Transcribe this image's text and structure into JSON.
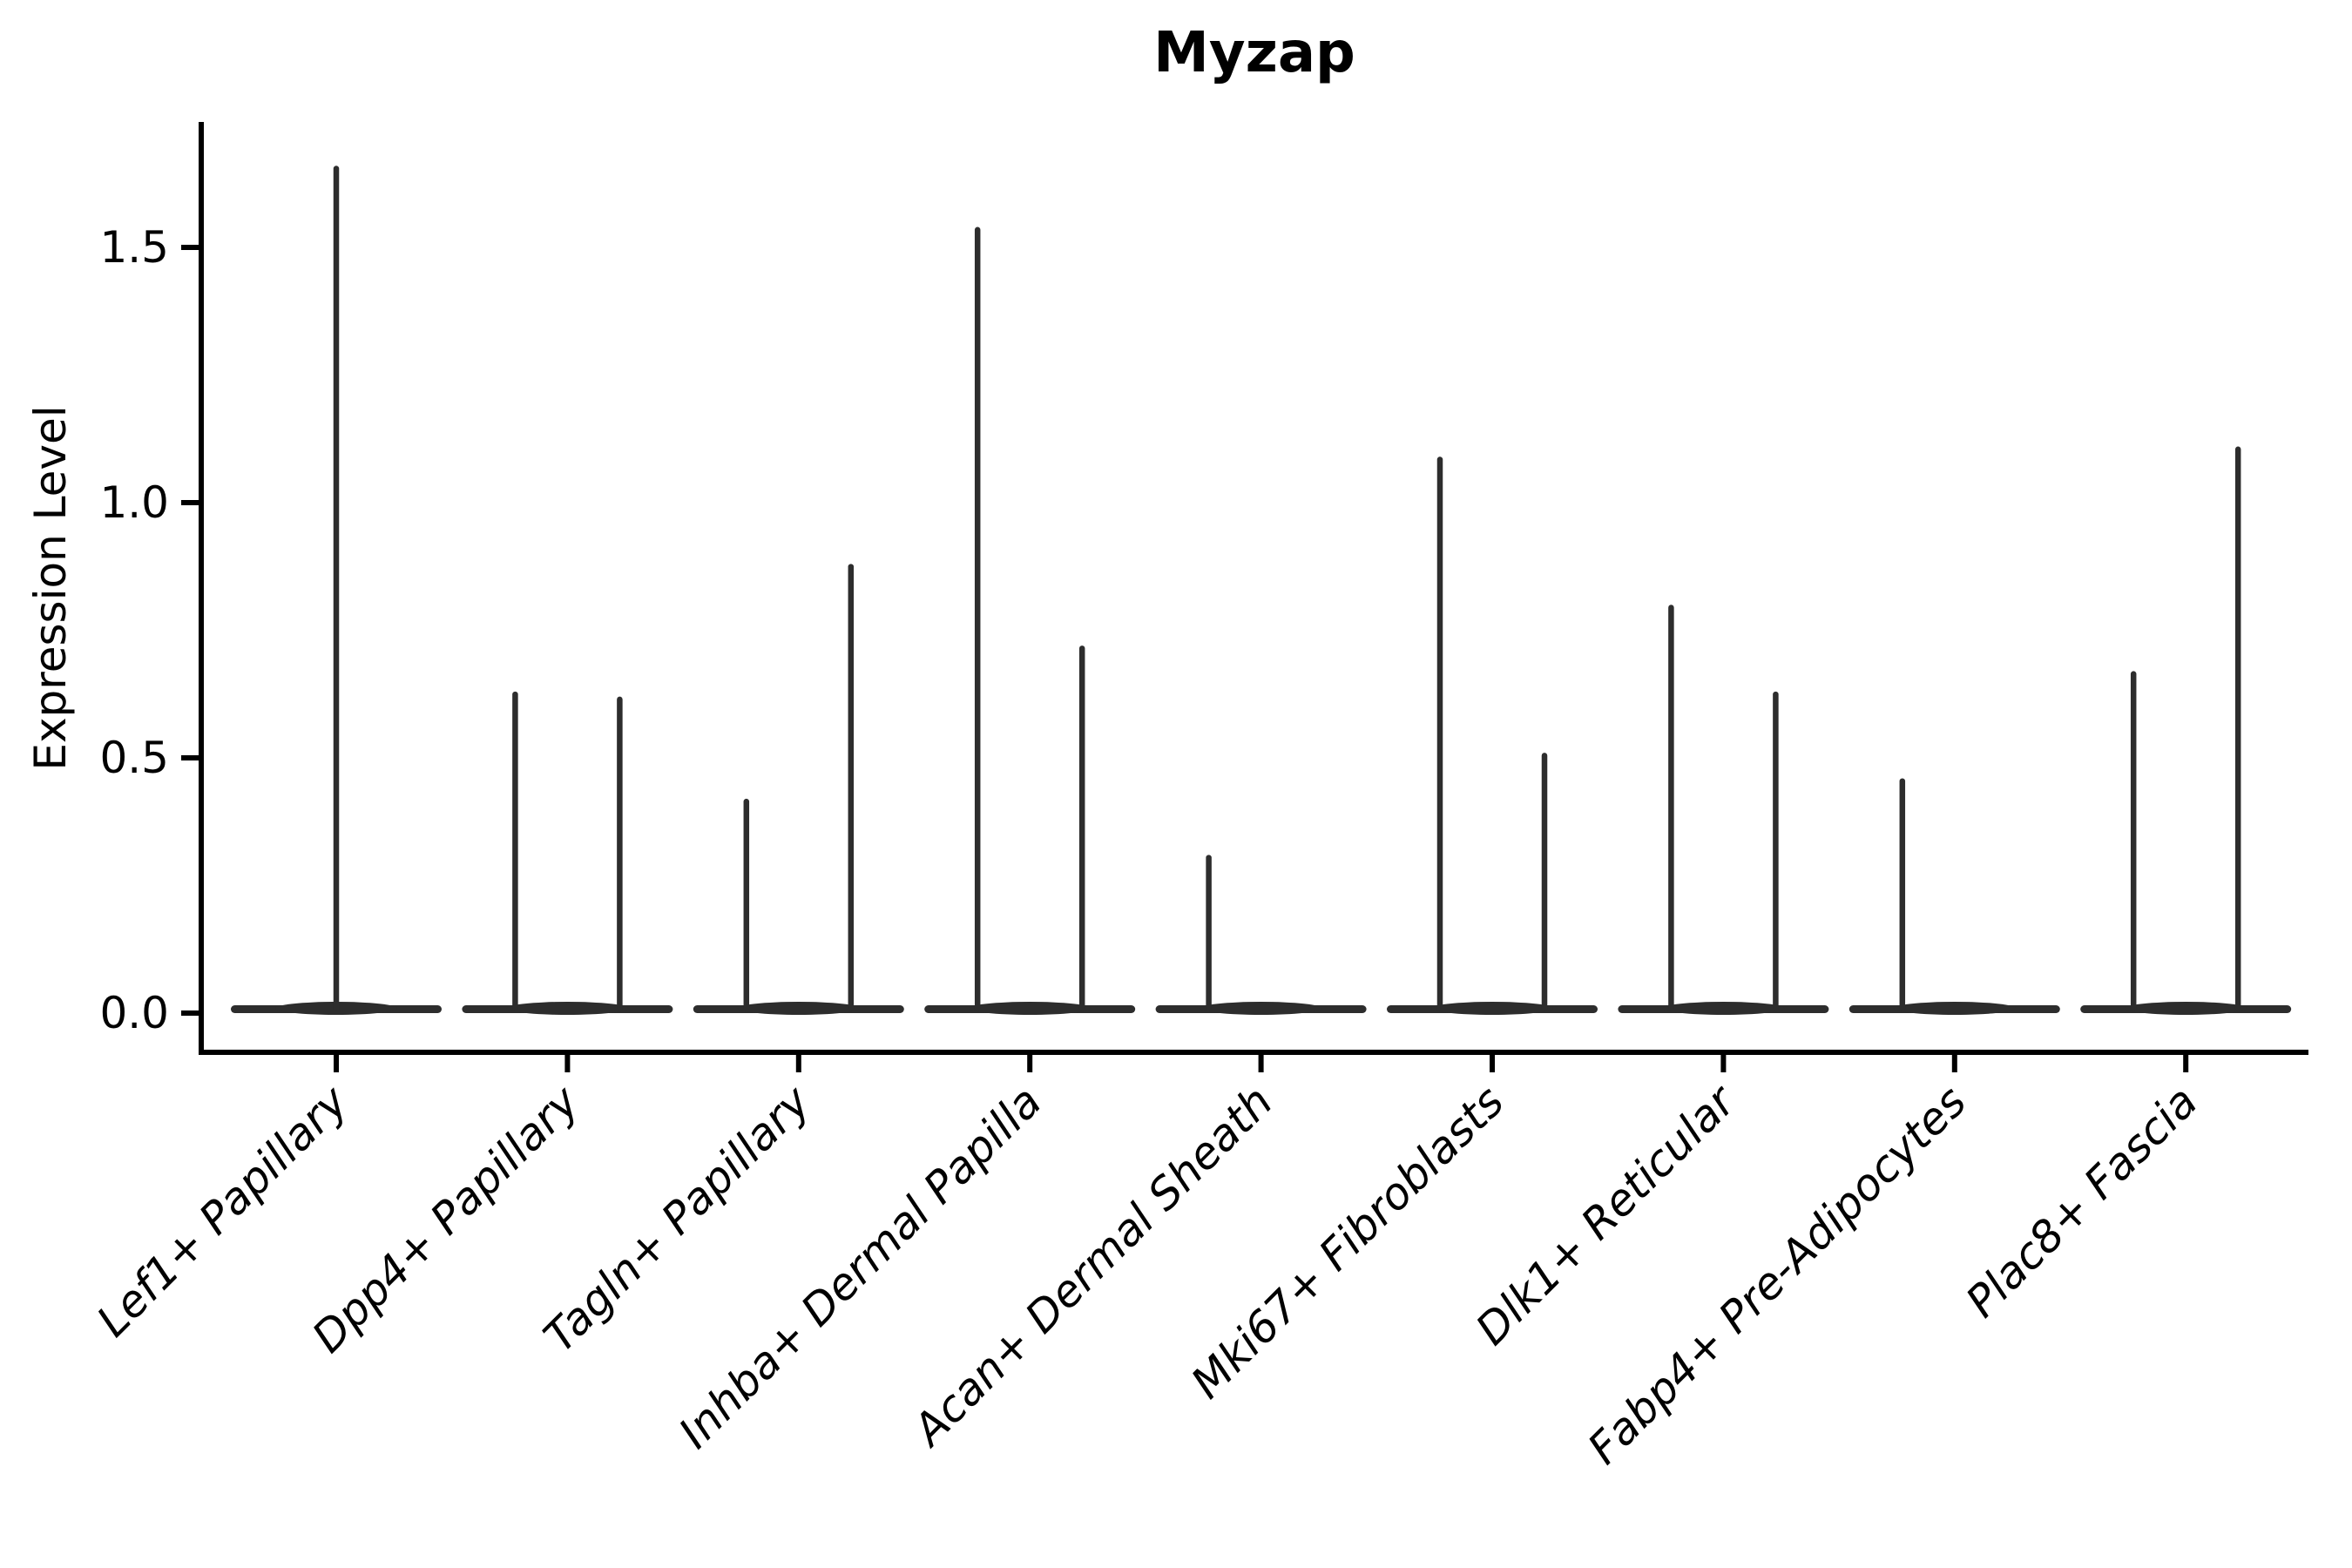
{
  "chart_data": {
    "type": "violin",
    "title": "Myzap",
    "ylabel": "Expression Level",
    "xlabel": "",
    "yticks": [
      {
        "value": 0.0,
        "label": "0.0"
      },
      {
        "value": 0.5,
        "label": "0.5"
      },
      {
        "value": 1.0,
        "label": "1.0"
      },
      {
        "value": 1.5,
        "label": "1.5"
      }
    ],
    "ylim": [
      -0.08,
      1.75
    ],
    "grid": false,
    "legend": false,
    "violin_color": "#2d2d2d",
    "axis_color": "#000000",
    "background_color": "#ffffff",
    "description": "Violin plot of Myzap expression; near-zero density bodies flattened at 0 with thin spikes to the maximum expression value; one or two violins per cell-type category.",
    "categories": [
      {
        "label": "Lef1+ Papillary",
        "violins": [
          {
            "position": "center",
            "peak": 1.66
          }
        ]
      },
      {
        "label": "Dpp4+ Papillary",
        "violins": [
          {
            "position": "left",
            "peak": 0.63
          },
          {
            "position": "right",
            "peak": 0.62
          }
        ]
      },
      {
        "label": "Tagln+ Papillary",
        "violins": [
          {
            "position": "left",
            "peak": 0.42
          },
          {
            "position": "right",
            "peak": 0.88
          }
        ]
      },
      {
        "label": "Inhba+ Dermal Papilla",
        "violins": [
          {
            "position": "left",
            "peak": 1.54
          },
          {
            "position": "right",
            "peak": 0.72
          }
        ]
      },
      {
        "label": "Acan+ Dermal Sheath",
        "violins": [
          {
            "position": "left",
            "peak": 0.31
          }
        ]
      },
      {
        "label": "Mki67+ Fibroblasts",
        "violins": [
          {
            "position": "left",
            "peak": 1.09
          },
          {
            "position": "right",
            "peak": 0.51
          }
        ]
      },
      {
        "label": "Dlk1+ Reticular",
        "violins": [
          {
            "position": "left",
            "peak": 0.8
          },
          {
            "position": "right",
            "peak": 0.63
          }
        ]
      },
      {
        "label": "Fabp4+ Pre-Adipocytes",
        "violins": [
          {
            "position": "left",
            "peak": 0.46
          }
        ]
      },
      {
        "label": "Plac8+ Fascia",
        "violins": [
          {
            "position": "left",
            "peak": 0.67
          },
          {
            "position": "right",
            "peak": 1.11
          }
        ]
      }
    ]
  }
}
